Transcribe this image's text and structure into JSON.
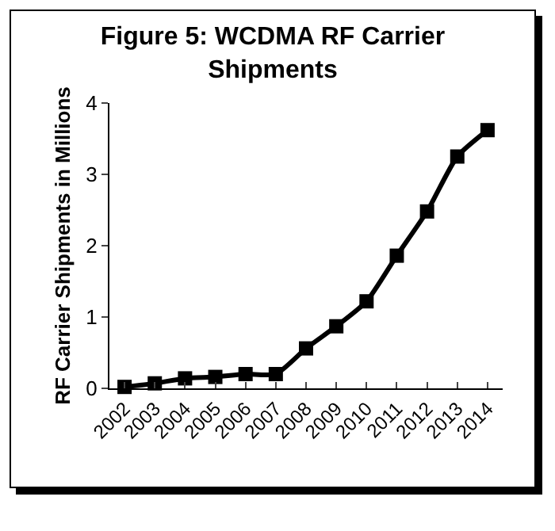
{
  "chart_data": {
    "type": "line",
    "title": "Figure 5: WCDMA RF Carrier Shipments",
    "ylabel": "RF Carrier Shipments in Millions",
    "categories": [
      "2002",
      "2003",
      "2004",
      "2005",
      "2006",
      "2007",
      "2008",
      "2009",
      "2010",
      "2011",
      "2012",
      "2013",
      "2014"
    ],
    "series": [
      {
        "color": "#000000",
        "values": [
          0.02,
          0.07,
          0.14,
          0.16,
          0.2,
          0.2,
          0.56,
          0.87,
          1.22,
          1.86,
          2.48,
          3.25,
          3.62
        ]
      }
    ],
    "ylim": [
      0,
      4
    ],
    "yticks": [
      0,
      1,
      2,
      3,
      4
    ],
    "grid": false,
    "legend": false,
    "marker": "square",
    "line_style": "solid"
  }
}
